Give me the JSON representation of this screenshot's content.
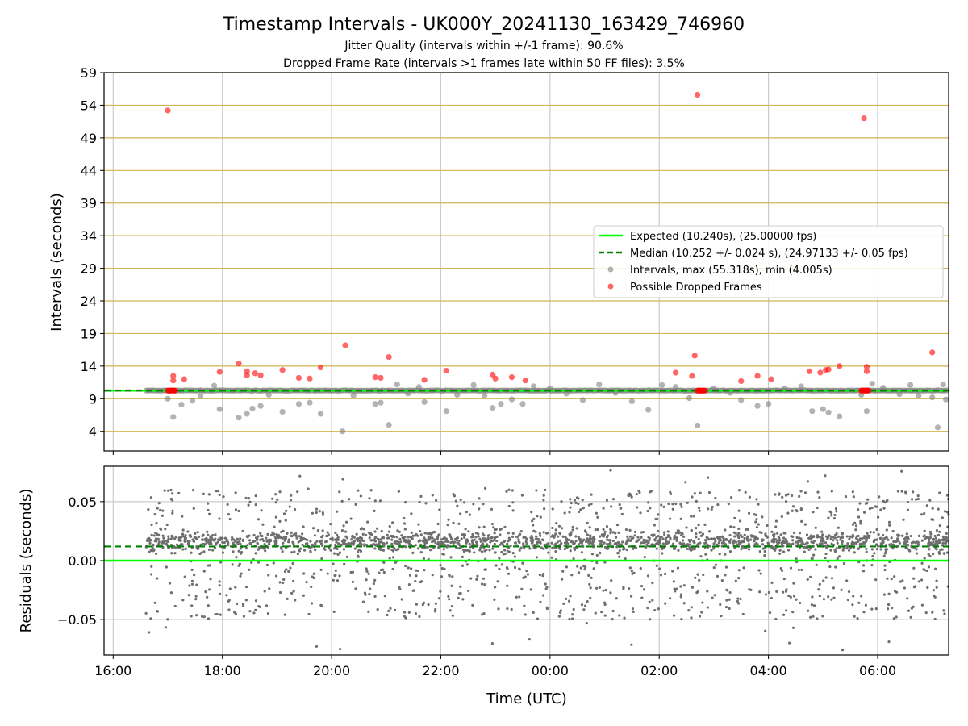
{
  "title": "Timestamp Intervals - UK000Y_20241130_163429_746960",
  "subtitle_jitter": "Jitter Quality (intervals within +/-1 frame): 90.6%",
  "subtitle_dropped": "Dropped Frame Rate (intervals >1 frames late within 50 FF files): 3.5%",
  "colors": {
    "expected": "#00ff00",
    "median": "#008000",
    "intervals": "#808080",
    "dropped": "#ff0000",
    "hgrid": "#d2b450",
    "vgrid": "#cccccc"
  },
  "chart_data": [
    {
      "type": "scatter",
      "panel": "top",
      "ylabel": "Intervals (seconds)",
      "ylim": [
        1,
        59
      ],
      "yticks": [
        "59",
        "54",
        "49",
        "44",
        "39",
        "34",
        "29",
        "24",
        "19",
        "14",
        "9",
        "4"
      ],
      "grid": true,
      "legend_placement": "center-right",
      "legend": {
        "expected": "Expected (10.240s), (25.00000 fps)",
        "median": "Median (10.252 +/- 0.024 s), (24.97133 +/- 0.05 fps)",
        "intervals": "Intervals, max (55.318s), min (4.005s)",
        "dropped": "Possible Dropped Frames"
      },
      "expected_value": 10.24,
      "median_value": 10.252,
      "series": [
        {
          "name": "Intervals, max (55.318s), min (4.005s)",
          "points": [
            [
              17.0,
              9.0
            ],
            [
              17.1,
              6.2
            ],
            [
              17.25,
              8.1
            ],
            [
              17.45,
              8.7
            ],
            [
              17.6,
              9.4
            ],
            [
              17.85,
              11.0
            ],
            [
              17.95,
              7.4
            ],
            [
              18.3,
              6.1
            ],
            [
              18.45,
              6.7
            ],
            [
              18.55,
              7.5
            ],
            [
              18.7,
              7.9
            ],
            [
              18.85,
              9.6
            ],
            [
              19.1,
              7.0
            ],
            [
              19.4,
              8.2
            ],
            [
              19.6,
              8.4
            ],
            [
              19.8,
              6.7
            ],
            [
              20.2,
              4.0
            ],
            [
              20.4,
              9.5
            ],
            [
              20.8,
              8.2
            ],
            [
              20.9,
              8.4
            ],
            [
              21.05,
              5.0
            ],
            [
              21.2,
              11.2
            ],
            [
              21.4,
              9.8
            ],
            [
              21.6,
              10.8
            ],
            [
              21.7,
              8.5
            ],
            [
              22.1,
              7.1
            ],
            [
              22.3,
              9.6
            ],
            [
              22.6,
              11.1
            ],
            [
              22.8,
              9.5
            ],
            [
              22.95,
              7.6
            ],
            [
              23.1,
              8.2
            ],
            [
              23.3,
              8.9
            ],
            [
              23.5,
              8.2
            ],
            [
              23.7,
              10.9
            ],
            [
              24.0,
              10.6
            ],
            [
              24.3,
              9.8
            ],
            [
              24.6,
              8.8
            ],
            [
              24.9,
              11.2
            ],
            [
              25.2,
              9.9
            ],
            [
              25.5,
              8.6
            ],
            [
              25.8,
              7.3
            ],
            [
              26.05,
              11.1
            ],
            [
              26.3,
              10.8
            ],
            [
              26.55,
              9.1
            ],
            [
              26.7,
              4.9
            ],
            [
              27.0,
              10.6
            ],
            [
              27.3,
              9.9
            ],
            [
              27.5,
              8.8
            ],
            [
              27.8,
              7.9
            ],
            [
              28.0,
              8.2
            ],
            [
              28.3,
              10.6
            ],
            [
              28.6,
              10.9
            ],
            [
              28.8,
              7.1
            ],
            [
              29.0,
              7.4
            ],
            [
              29.1,
              6.9
            ],
            [
              29.3,
              6.3
            ],
            [
              29.7,
              9.6
            ],
            [
              29.8,
              7.1
            ],
            [
              29.9,
              11.3
            ],
            [
              30.1,
              10.7
            ],
            [
              30.4,
              9.7
            ],
            [
              30.6,
              11.1
            ],
            [
              30.75,
              9.5
            ],
            [
              31.0,
              9.2
            ],
            [
              31.1,
              4.6
            ],
            [
              31.2,
              11.2
            ],
            [
              31.25,
              8.9
            ]
          ]
        },
        {
          "name": "Possible Dropped Frames",
          "points": [
            [
              17.0,
              53.2
            ],
            [
              17.1,
              12.5
            ],
            [
              17.1,
              11.8
            ],
            [
              17.3,
              12.0
            ],
            [
              17.95,
              13.1
            ],
            [
              18.3,
              14.4
            ],
            [
              18.45,
              13.2
            ],
            [
              18.45,
              12.6
            ],
            [
              18.6,
              12.9
            ],
            [
              18.7,
              12.6
            ],
            [
              19.1,
              13.4
            ],
            [
              19.4,
              12.2
            ],
            [
              19.6,
              12.1
            ],
            [
              19.8,
              13.8
            ],
            [
              20.25,
              17.2
            ],
            [
              20.8,
              12.3
            ],
            [
              20.9,
              12.2
            ],
            [
              21.05,
              15.4
            ],
            [
              21.7,
              11.9
            ],
            [
              22.1,
              13.3
            ],
            [
              22.95,
              12.7
            ],
            [
              23.0,
              12.1
            ],
            [
              23.3,
              12.3
            ],
            [
              23.55,
              11.8
            ],
            [
              26.3,
              13.0
            ],
            [
              26.6,
              12.5
            ],
            [
              26.65,
              15.6
            ],
            [
              26.7,
              55.6
            ],
            [
              27.5,
              11.7
            ],
            [
              27.8,
              12.5
            ],
            [
              28.05,
              12.0
            ],
            [
              28.75,
              13.2
            ],
            [
              28.95,
              13.0
            ],
            [
              29.05,
              13.4
            ],
            [
              29.1,
              13.5
            ],
            [
              29.3,
              14.0
            ],
            [
              29.75,
              52.0
            ],
            [
              29.8,
              13.9
            ],
            [
              29.8,
              13.2
            ],
            [
              31.0,
              16.1
            ]
          ]
        }
      ]
    },
    {
      "type": "scatter",
      "panel": "bottom",
      "xlabel": "Time (UTC)",
      "ylabel": "Residuals (seconds)",
      "ylim": [
        -0.08,
        0.08
      ],
      "yticks": [
        "0.05",
        "0.00",
        "−0.05"
      ],
      "xlim": [
        15.833,
        31.3
      ],
      "xticks": [
        "16:00",
        "18:00",
        "20:00",
        "22:00",
        "00:00",
        "02:00",
        "04:00",
        "06:00"
      ],
      "grid": true,
      "expected_residual": 0.0,
      "median_residual": 0.012,
      "residuals": {
        "time_range": [
          16.6,
          31.3
        ],
        "count": 2600,
        "band_mean": 0.016,
        "band_spread": 0.012,
        "scatter_range": [
          -0.05,
          0.06
        ],
        "extremes": [
          -0.078,
          0.078
        ]
      }
    }
  ]
}
